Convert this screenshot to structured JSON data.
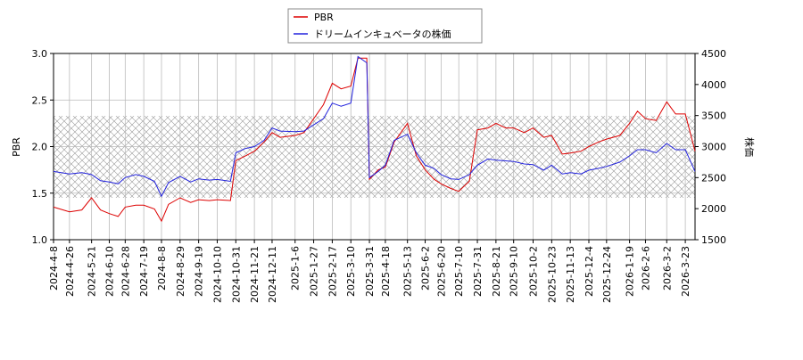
{
  "chart_data": {
    "type": "line",
    "x": [
      "2024-4-8",
      "2024-4-26",
      "2024-5-10",
      "2024-5-21",
      "2024-5-31",
      "2024-6-10",
      "2024-6-20",
      "2024-6-28",
      "2024-7-10",
      "2024-7-19",
      "2024-7-31",
      "2024-8-8",
      "2024-8-16",
      "2024-8-29",
      "2024-9-10",
      "2024-9-19",
      "2024-10-1",
      "2024-10-10",
      "2024-10-25",
      "2024-10-31",
      "2024-11-11",
      "2024-11-21",
      "2024-12-2",
      "2024-12-11",
      "2024-12-20",
      "2025-1-6",
      "2025-1-16",
      "2025-1-27",
      "2025-2-7",
      "2025-2-17",
      "2025-2-27",
      "2025-3-10",
      "2025-3-18",
      "2025-3-28",
      "2025-3-31",
      "2025-4-10",
      "2025-4-18",
      "2025-4-28",
      "2025-5-13",
      "2025-5-23",
      "2025-6-2",
      "2025-6-12",
      "2025-6-20",
      "2025-7-1",
      "2025-7-10",
      "2025-7-22",
      "2025-7-31",
      "2025-8-12",
      "2025-8-21",
      "2025-9-1",
      "2025-9-10",
      "2025-9-22",
      "2025-10-2",
      "2025-10-14",
      "2025-10-23",
      "2025-11-4",
      "2025-11-13",
      "2025-11-25",
      "2025-12-4",
      "2025-12-15",
      "2025-12-24",
      "2026-1-8",
      "2026-1-19",
      "2026-1-28",
      "2026-2-6",
      "2026-2-18",
      "2026-3-2",
      "2026-3-12",
      "2026-3-23",
      "2026-4-3"
    ],
    "series": [
      {
        "name": "PBR",
        "color": "#dd0000",
        "values": [
          1.35,
          1.3,
          1.32,
          1.45,
          1.32,
          1.28,
          1.25,
          1.35,
          1.37,
          1.37,
          1.33,
          1.2,
          1.38,
          1.45,
          1.4,
          1.43,
          1.42,
          1.43,
          1.42,
          1.85,
          1.9,
          1.95,
          2.05,
          2.15,
          2.1,
          2.12,
          2.15,
          2.3,
          2.45,
          2.68,
          2.62,
          2.65,
          2.95,
          2.95,
          1.65,
          1.75,
          1.78,
          2.05,
          2.25,
          1.9,
          1.75,
          1.65,
          1.6,
          1.55,
          1.52,
          1.63,
          2.18,
          2.2,
          2.25,
          2.2,
          2.2,
          2.15,
          2.2,
          2.1,
          2.12,
          1.92,
          1.93,
          1.95,
          2.0,
          2.05,
          2.08,
          2.12,
          2.25,
          2.38,
          2.3,
          2.28,
          2.48,
          2.35,
          2.35,
          1.95
        ]
      },
      {
        "name": "ドリームインキュベータの株価",
        "color": "#2222dd",
        "axis": "y2",
        "values": [
          2600,
          2560,
          2580,
          2550,
          2450,
          2430,
          2400,
          2500,
          2550,
          2520,
          2440,
          2200,
          2420,
          2520,
          2430,
          2480,
          2460,
          2470,
          2440,
          2900,
          2970,
          3000,
          3100,
          3300,
          3250,
          3240,
          3250,
          3350,
          3450,
          3700,
          3650,
          3700,
          4450,
          4350,
          2500,
          2600,
          2700,
          3100,
          3200,
          2900,
          2700,
          2650,
          2550,
          2480,
          2470,
          2550,
          2700,
          2800,
          2780,
          2770,
          2760,
          2720,
          2710,
          2620,
          2700,
          2560,
          2580,
          2560,
          2620,
          2650,
          2680,
          2750,
          2850,
          2950,
          2950,
          2900,
          3050,
          2950,
          2950,
          2600
        ]
      }
    ],
    "ylabel": "PBR",
    "y2label": "株価",
    "xlim": [
      "2024-4-8",
      "2026-4-3"
    ],
    "xticks": [
      "2024-4-8",
      "2024-4-26",
      "2024-5-21",
      "2024-6-10",
      "2024-6-28",
      "2024-7-19",
      "2024-8-8",
      "2024-8-29",
      "2024-9-19",
      "2024-10-10",
      "2024-10-31",
      "2024-11-21",
      "2024-12-11",
      "2025-1-6",
      "2025-1-27",
      "2025-2-17",
      "2025-3-10",
      "2025-3-31",
      "2025-4-18",
      "2025-5-13",
      "2025-6-2",
      "2025-6-20",
      "2025-7-10",
      "2025-7-31",
      "2025-8-21",
      "2025-9-10",
      "2025-10-2",
      "2025-10-23",
      "2025-11-13",
      "2025-12-4",
      "2025-12-24",
      "2026-1-19",
      "2026-2-6",
      "2026-3-2",
      "2026-3-23"
    ],
    "ylim": [
      1.0,
      3.0
    ],
    "yticks": [
      {
        "value": 1.0,
        "label": "1.0"
      },
      {
        "value": 1.5,
        "label": "1.5"
      },
      {
        "value": 2.0,
        "label": "2.0"
      },
      {
        "value": 2.5,
        "label": "2.5"
      },
      {
        "value": 3.0,
        "label": "3.0"
      }
    ],
    "y2lim": [
      1500,
      4500
    ],
    "y2ticks": [
      1500,
      2000,
      2500,
      3000,
      3500,
      4000,
      4500
    ],
    "shaded_range": [
      1.45,
      2.33
    ],
    "grid": true,
    "legend": "top"
  }
}
